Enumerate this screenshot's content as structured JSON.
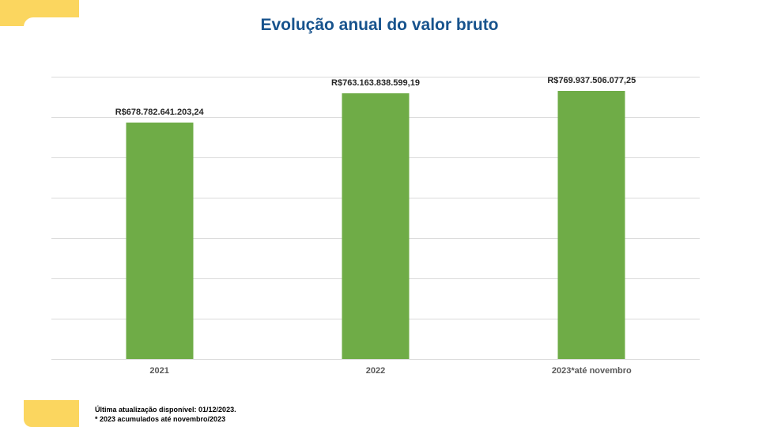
{
  "title": "Evolução anual do valor bruto",
  "chart_data": {
    "type": "bar",
    "title": "Evolução anual do valor bruto",
    "categories": [
      "2021",
      "2022",
      "2023*até novembro"
    ],
    "values": [
      678782641203.24,
      763163838599.19,
      769937506077.25
    ],
    "value_labels": [
      "R$678.782.641.203,24",
      "R$763.163.838.599,19",
      "R$769.937.506.077,25"
    ],
    "xlabel": "",
    "ylabel": "",
    "ylim": [
      0,
      810000000000
    ],
    "gridlines": 8,
    "grid": true,
    "legend": false,
    "bar_color": "#6FAC47"
  },
  "footer": {
    "line1": "Última atualização disponível:  01/12/2023.",
    "line2": "* 2023 acumulados até novembro/2023"
  },
  "colors": {
    "title": "#17538D",
    "bar": "#6FAC47",
    "accent_yellow": "#FBD65F",
    "gridline": "#DBDBDB"
  }
}
